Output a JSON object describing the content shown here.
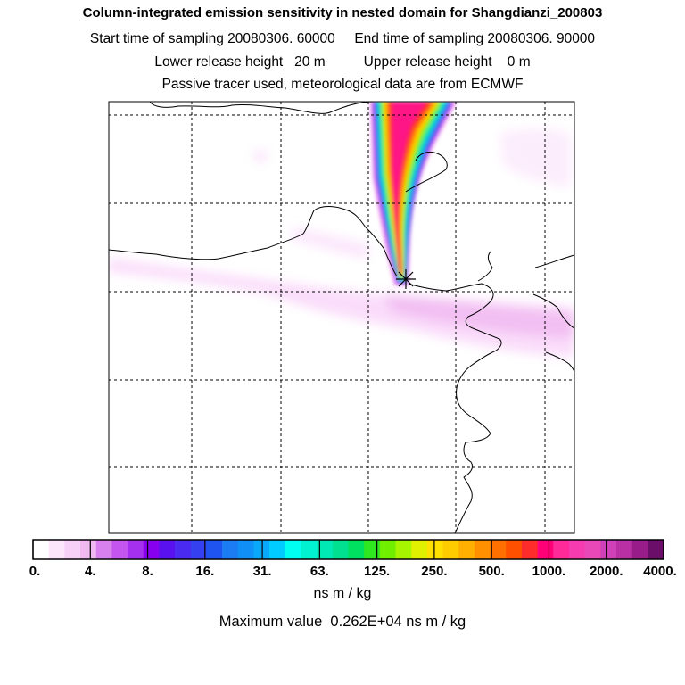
{
  "header": {
    "title": "Column-integrated emission sensitivity in nested domain for Shangdianzi_200803",
    "line2": "Start time of sampling 20080306. 60000     End time of sampling 20080306. 90000",
    "line3": "Lower release height   20 m          Upper release height    0 m",
    "line4": "Passive tracer used, meteorological data are from ECMWF"
  },
  "colorbar": {
    "colors": [
      "#ffffff",
      "#fbe6fb",
      "#f7d0f7",
      "#f2b8f2",
      "#d880ee",
      "#c455ee",
      "#a531ee",
      "#8800f0",
      "#5a11f0",
      "#4a2af0",
      "#3540f0",
      "#2054f0",
      "#1c7cf3",
      "#1090f6",
      "#0aa8fa",
      "#00ccff",
      "#00fff0",
      "#00f2d0",
      "#00e8b4",
      "#00e090",
      "#00e060",
      "#30e820",
      "#70f000",
      "#a8f500",
      "#e0f000",
      "#ffe000",
      "#ffcc00",
      "#ffb000",
      "#ff9000",
      "#ff7000",
      "#ff5000",
      "#ff2c2c",
      "#ff0078",
      "#ff2a9a",
      "#f63ab0",
      "#e848b8",
      "#d040b8",
      "#b830a4",
      "#981d8a",
      "#6a0e6a"
    ],
    "tick_labels": [
      "0.",
      "4.",
      "8.",
      "16.",
      "31.",
      "63.",
      "125.",
      "250.",
      "500.",
      "1000.",
      "2000.",
      "4000."
    ],
    "unit": "ns m / kg"
  },
  "footer": {
    "max_value_text": "Maximum value  0.262E+04 ns m / kg"
  },
  "map": {
    "receptor_marker": "star-marker"
  }
}
